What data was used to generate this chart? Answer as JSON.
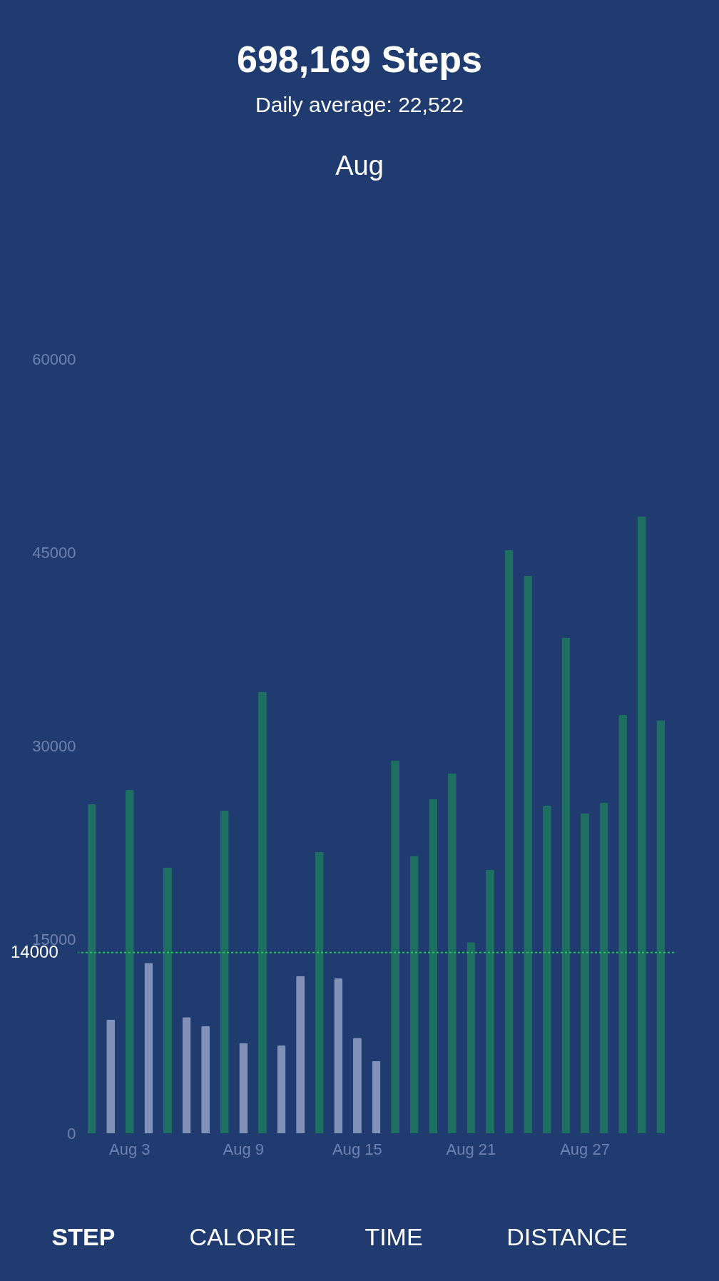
{
  "chart_data": {
    "type": "bar",
    "title": "698,169 Steps",
    "subtitle": "Daily average:   22,522",
    "annotations": [
      "Aug",
      "STEP",
      "CALORIE",
      "TIME",
      "DISTANCE"
    ],
    "categories": [
      null,
      null,
      "Aug 3",
      null,
      null,
      null,
      null,
      null,
      "Aug 9",
      null,
      null,
      null,
      null,
      null,
      "Aug 15",
      null,
      null,
      null,
      null,
      null,
      "Aug 21",
      null,
      null,
      null,
      null,
      null,
      "Aug 27",
      null,
      null,
      null,
      null
    ],
    "values": [
      25500,
      8800,
      26600,
      13200,
      20600,
      9000,
      8300,
      25000,
      7000,
      34200,
      6800,
      12200,
      21800,
      12000,
      7400,
      5600,
      28900,
      21500,
      25900,
      27900,
      14800,
      20400,
      45200,
      43200,
      25400,
      38400,
      24800,
      25600,
      32400,
      47800,
      32000
    ],
    "colors": [
      "#1e6e62",
      "#8192b8",
      "#1e6e62",
      "#8192b8",
      "#1e6e62",
      "#8192b8",
      "#8192b8",
      "#1e6e62",
      "#8192b8",
      "#1e6e62",
      "#8192b8",
      "#8192b8",
      "#1e6e62",
      "#8192b8",
      "#8192b8",
      "#8192b8",
      "#1e6e62",
      "#1e6e62",
      "#1e6e62",
      "#1e6e62",
      "#1e6e62",
      "#1e6e62",
      "#1e6e62",
      "#1e6e62",
      "#1e6e62",
      "#1e6e62",
      "#1e6e62",
      "#1e6e62",
      "#1e6e62",
      "#1e6e62",
      "#1e6e62"
    ],
    "ylim": [
      0,
      60000
    ],
    "yticks": [
      0,
      15000,
      30000,
      45000,
      60000
    ],
    "ref_lines": [
      {
        "axis": "y",
        "value": 14000,
        "label": "14000",
        "color": "#2dbb66",
        "line_style": "dotted"
      }
    ],
    "grid": false
  }
}
